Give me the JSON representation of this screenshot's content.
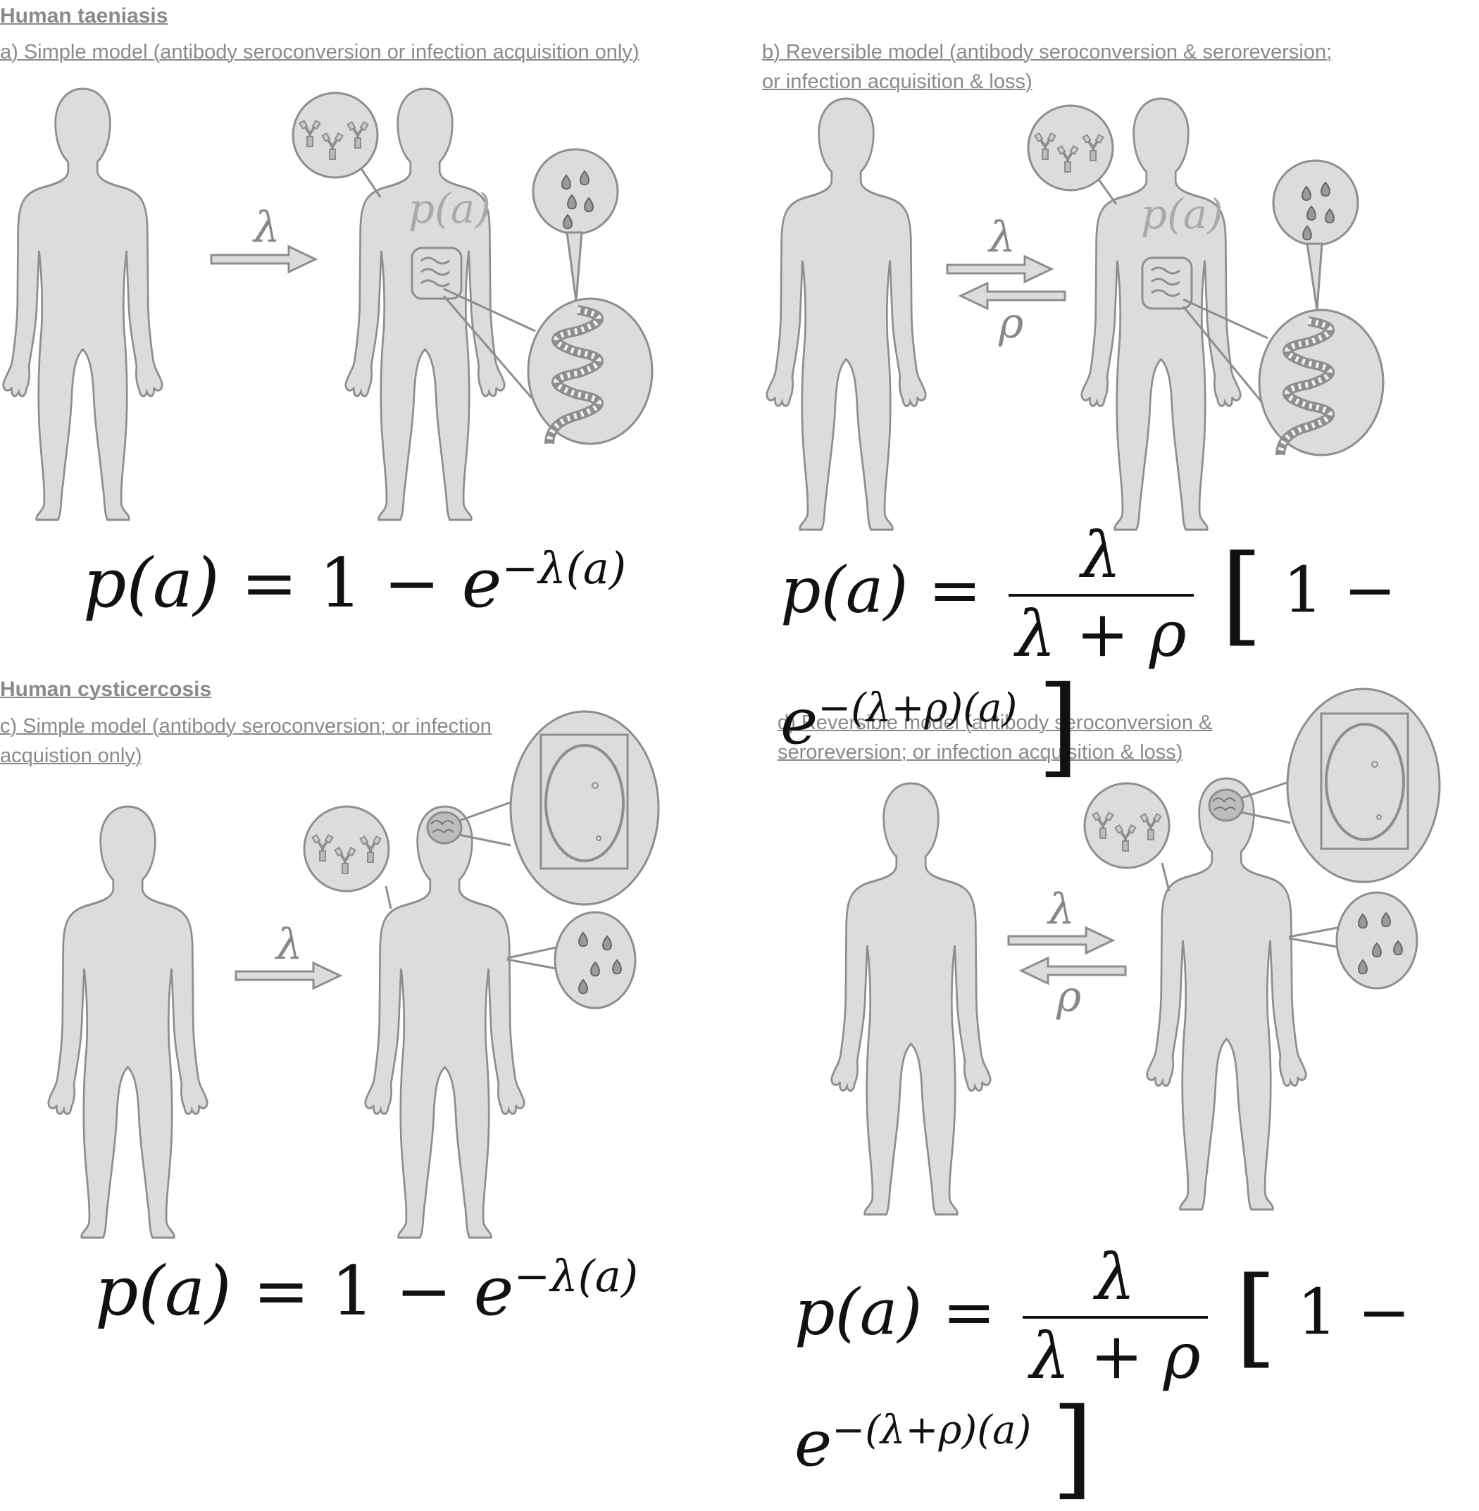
{
  "sections": {
    "taeniasis": {
      "heading": "Human taeniasis"
    },
    "cysticercosis": {
      "heading": "Human cysticercosis"
    }
  },
  "panels": {
    "a": {
      "caption": "a) Simple model (antibody seroconversion or infection acquisition only)",
      "formula": {
        "lhs": "p(a)",
        "eq": "=",
        "one": "1",
        "minus": "−",
        "e": "e",
        "exp": "−λ(a)"
      },
      "rate_forward": "λ",
      "body_label": "p(a)"
    },
    "b": {
      "caption": "b) Reversible model (antibody seroconversion & seroreversion;\nor infection acquisition & loss)",
      "formula": {
        "lhs": "p(a)",
        "eq": "=",
        "num": "λ",
        "den": "λ + ρ",
        "open": "[",
        "one": "1",
        "minus": "−",
        "e": "e",
        "exp": "−(λ+ρ)(a)",
        "close": "]"
      },
      "rate_forward": "λ",
      "rate_back": "ρ",
      "body_label": "p(a)"
    },
    "c": {
      "caption": "c) Simple model (antibody seroconversion; or infection\nacquistion only)",
      "formula": {
        "lhs": "p(a)",
        "eq": "=",
        "one": "1",
        "minus": "−",
        "e": "e",
        "exp": "−λ(a)"
      },
      "rate_forward": "λ"
    },
    "d": {
      "caption": "d) Reversible  model (antibody seroconversion &\nseroreversion; or infection acquisition & loss)",
      "formula": {
        "lhs": "p(a)",
        "eq": "=",
        "num": "λ",
        "den": "λ + ρ",
        "open": "[",
        "one": "1",
        "minus": "−",
        "e": "e",
        "exp": "−(λ+ρ)(a)",
        "close": "]"
      },
      "rate_forward": "λ",
      "rate_back": "ρ"
    }
  },
  "colors": {
    "figure_fill": "#dcdcdc",
    "figure_stroke": "#8e8e8e",
    "caption_text": "#8a8a8a",
    "formula_text": "#111111"
  },
  "icons": [
    "human-silhouette",
    "antibody-icon",
    "egg-icon",
    "tapeworm-icon",
    "intestine-icon",
    "brain-icon",
    "cyst-scan-icon",
    "arrow-right",
    "arrow-left"
  ]
}
